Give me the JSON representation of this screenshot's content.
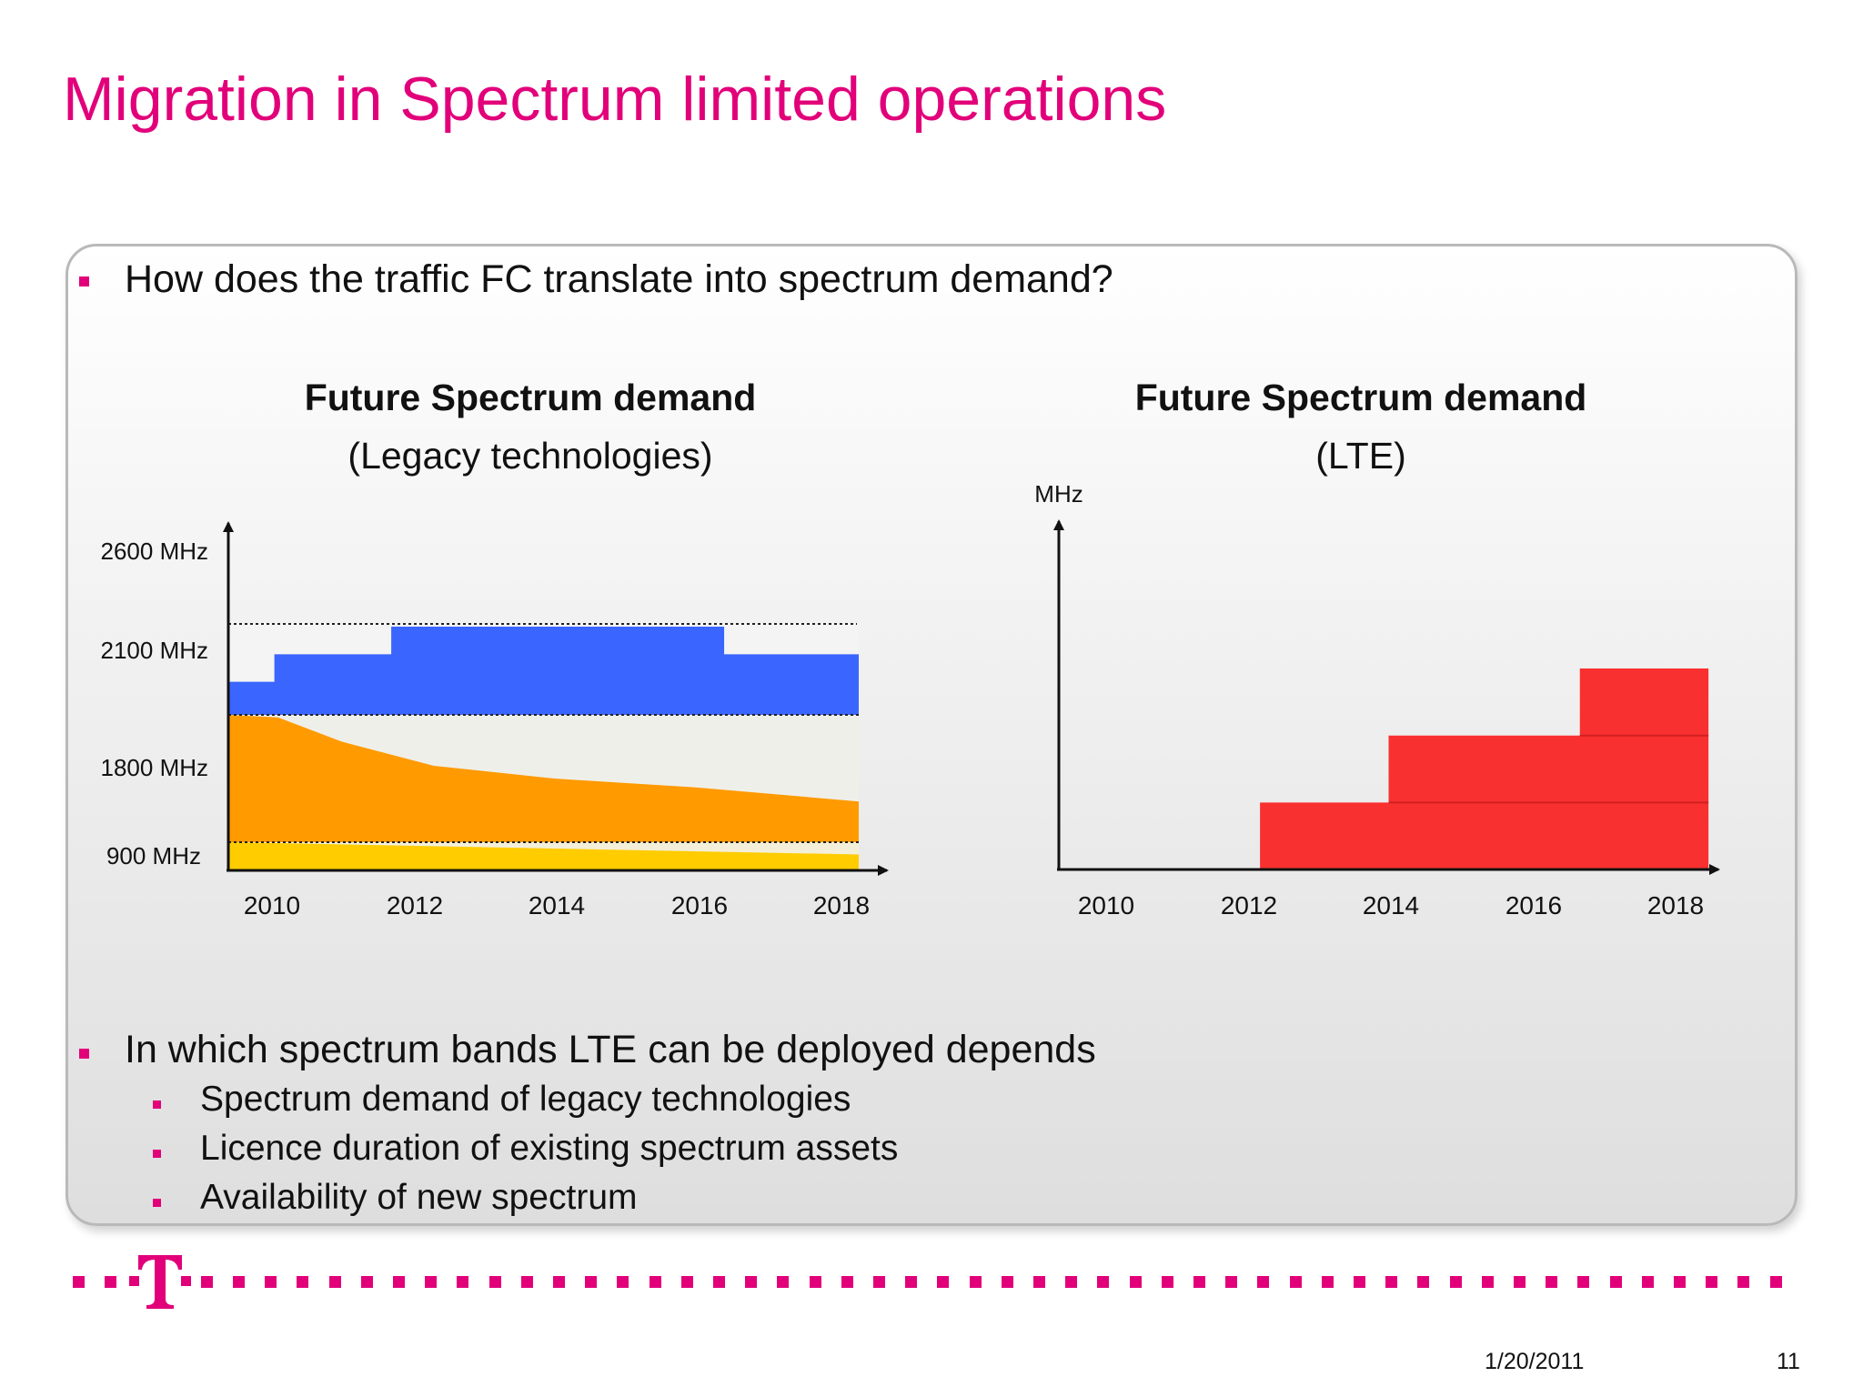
{
  "slide": {
    "title": "Migration in Spectrum limited operations",
    "bullet_top": "How does the traffic FC translate into spectrum demand?",
    "bullet_bottom": "In which spectrum bands LTE can be deployed depends",
    "sub_bullets": [
      "Spectrum demand of legacy technologies",
      "Licence duration of existing spectrum assets",
      "Availability of new spectrum"
    ]
  },
  "footer": {
    "date": "1/20/2011",
    "page": "11"
  },
  "colors": {
    "accent": "#e2007a",
    "blue_2100": "#3a66ff",
    "orange_1800": "#ff9a00",
    "yellow_900": "#ffcc00",
    "red_lte": "#f93030"
  },
  "chart_data": [
    {
      "type": "area",
      "title": "Future Spectrum demand",
      "subtitle": "(Legacy technologies)",
      "x_ticks": [
        "2010",
        "2012",
        "2014",
        "2016",
        "2018"
      ],
      "xlim": [
        2009.4,
        2018.3
      ],
      "y_band_labels": [
        "2600 MHz",
        "2100 MHz",
        "1800 MHz",
        "900 MHz"
      ],
      "band_capacity": {
        "900": 1,
        "1800": 5,
        "2100": 3.3
      },
      "series": [
        {
          "name": "900 MHz",
          "color": "#ffcc00",
          "x": [
            2009.4,
            2018.3
          ],
          "y": [
            1.0,
            0.55
          ],
          "step": false
        },
        {
          "name": "1800 MHz",
          "color": "#ff9a00",
          "x": [
            2009.4,
            2010.1,
            2011.0,
            2012.3,
            2014.0,
            2016.0,
            2018.3
          ],
          "y": [
            5.0,
            4.9,
            3.95,
            3.0,
            2.5,
            2.15,
            1.6
          ],
          "step": false
        },
        {
          "name": "2100 MHz",
          "color": "#3a66ff",
          "x": [
            2009.4,
            2010.05,
            2011.7,
            2016.4,
            2018.3
          ],
          "y": [
            1.2,
            2.2,
            3.2,
            2.2,
            2.2
          ],
          "step": true
        }
      ],
      "grid": false,
      "legend": "none"
    },
    {
      "type": "bar",
      "title": "Future Spectrum demand",
      "subtitle": "(LTE)",
      "ylabel": "MHz",
      "x_ticks": [
        "2010",
        "2012",
        "2014",
        "2016",
        "2018"
      ],
      "xlim": [
        2009.0,
        2019.0
      ],
      "ylim": [
        0,
        5.2
      ],
      "series": [
        {
          "name": "",
          "color": "#f93030",
          "x": [
            2012.05,
            2014.0,
            2016.9,
            2018.0
          ],
          "y": [
            1.0,
            2.0,
            3.0,
            3.0
          ],
          "step": true
        }
      ],
      "grid": false,
      "legend": "none"
    }
  ]
}
